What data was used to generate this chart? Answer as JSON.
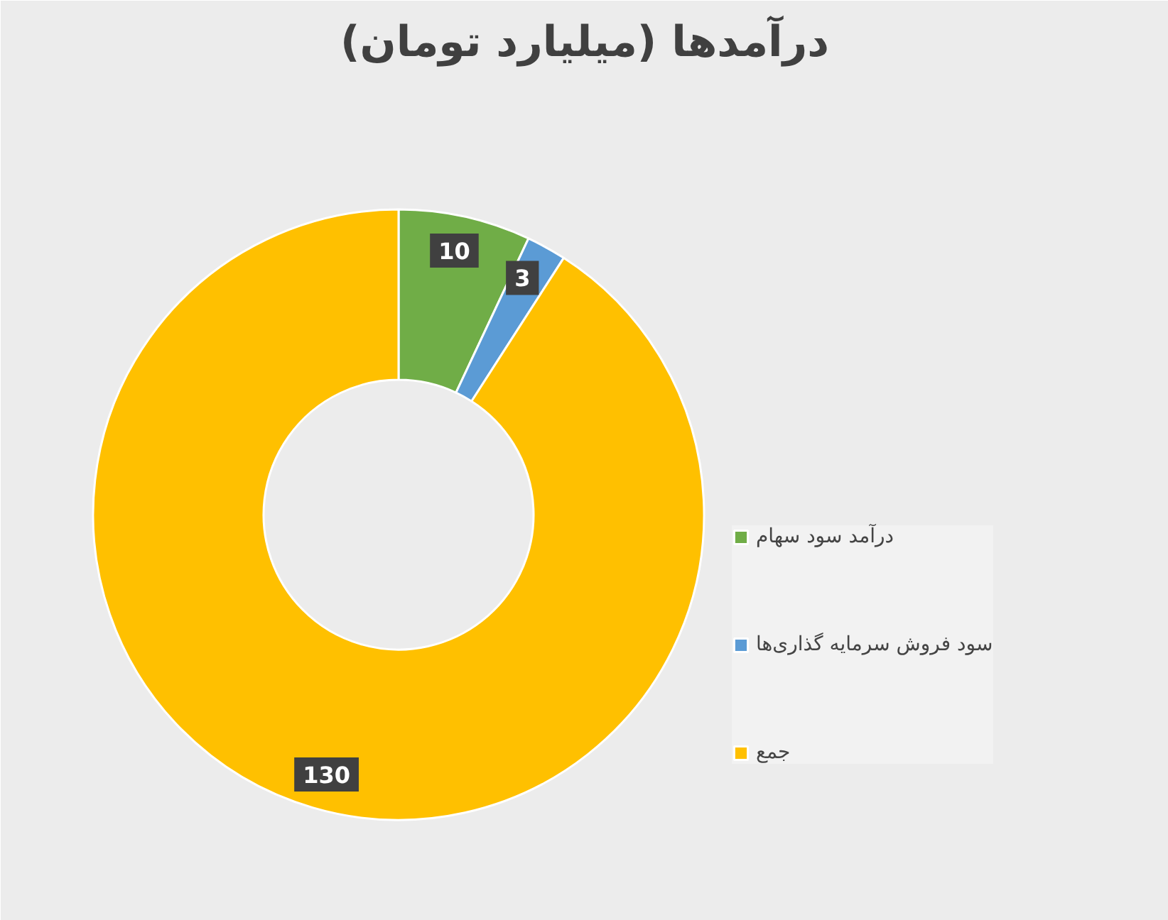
{
  "chart_data": {
    "type": "donut",
    "title": "درآمدها (میلیارد تومان)",
    "categories": [
      "درآمد سود سهام",
      "سود فروش سرمایه گذاری‌ها",
      "جمع"
    ],
    "values": [
      10,
      3,
      130
    ],
    "colors": [
      "#70ad47",
      "#5b9bd5",
      "#ffc000"
    ],
    "data_labels": true,
    "legend": "right"
  }
}
